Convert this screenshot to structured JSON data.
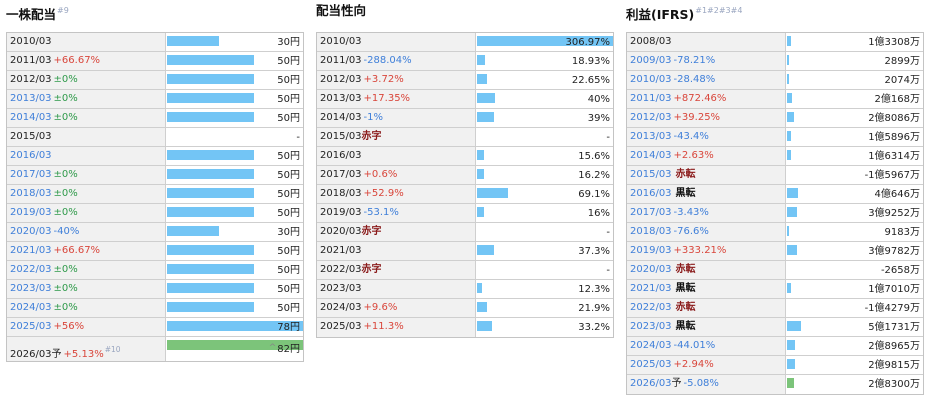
{
  "colors": {
    "bar": "#73c5f5",
    "forecast_bar": "#7cc47a",
    "up": "#d9463b",
    "down": "#3f7fd9",
    "flat": "#2f9a4a",
    "loss": "#8a1a1a"
  },
  "panels": [
    {
      "id": "dividend",
      "title": "一株配当",
      "title_note": "#9",
      "rows": [
        {
          "year": "2010/03",
          "link": false,
          "change": "",
          "tone": "",
          "value": "30円",
          "level": 0.385
        },
        {
          "year": "2011/03",
          "link": false,
          "change": "+66.67%",
          "tone": "pos",
          "value": "50円",
          "level": 0.641
        },
        {
          "year": "2012/03",
          "link": false,
          "change": "±0%",
          "tone": "zero",
          "value": "50円",
          "level": 0.641
        },
        {
          "year": "2013/03",
          "link": true,
          "change": "±0%",
          "tone": "zero",
          "value": "50円",
          "level": 0.641
        },
        {
          "year": "2014/03",
          "link": true,
          "change": "±0%",
          "tone": "zero",
          "value": "50円",
          "level": 0.641
        },
        {
          "year": "2015/03",
          "link": false,
          "change": "",
          "tone": "",
          "value": "-",
          "level": 0
        },
        {
          "year": "2016/03",
          "link": true,
          "change": "",
          "tone": "",
          "value": "50円",
          "level": 0.641
        },
        {
          "year": "2017/03",
          "link": true,
          "change": "±0%",
          "tone": "zero",
          "value": "50円",
          "level": 0.641
        },
        {
          "year": "2018/03",
          "link": true,
          "change": "±0%",
          "tone": "zero",
          "value": "50円",
          "level": 0.641
        },
        {
          "year": "2019/03",
          "link": true,
          "change": "±0%",
          "tone": "zero",
          "value": "50円",
          "level": 0.641
        },
        {
          "year": "2020/03",
          "link": true,
          "change": "-40%",
          "tone": "neg",
          "value": "30円",
          "level": 0.385
        },
        {
          "year": "2021/03",
          "link": true,
          "change": "+66.67%",
          "tone": "pos",
          "value": "50円",
          "level": 0.641
        },
        {
          "year": "2022/03",
          "link": true,
          "change": "±0%",
          "tone": "zero",
          "value": "50円",
          "level": 0.641
        },
        {
          "year": "2023/03",
          "link": true,
          "change": "±0%",
          "tone": "zero",
          "value": "50円",
          "level": 0.641
        },
        {
          "year": "2024/03",
          "link": true,
          "change": "±0%",
          "tone": "zero",
          "value": "50円",
          "level": 0.641
        },
        {
          "year": "2025/03",
          "link": true,
          "change": "+56%",
          "tone": "pos",
          "value": "78円",
          "level": 1.0
        },
        {
          "year": "2026/03",
          "link": false,
          "forecast": true,
          "forecast_label": "予",
          "change": "+5.13%",
          "tone": "pos",
          "change_note": "#10",
          "value_mark": "^",
          "value": "82円",
          "level": 1.0,
          "tall": true
        }
      ]
    },
    {
      "id": "payout",
      "title": "配当性向",
      "title_note": "",
      "rows": [
        {
          "year": "2010/03",
          "link": false,
          "change": "",
          "tone": "",
          "value": "306.97%",
          "level": 1.0
        },
        {
          "year": "2011/03",
          "link": false,
          "change": "-288.04%",
          "tone": "neg",
          "value": "18.93%",
          "level": 0.062
        },
        {
          "year": "2012/03",
          "link": false,
          "change": "+3.72%",
          "tone": "pos",
          "value": "22.65%",
          "level": 0.074
        },
        {
          "year": "2013/03",
          "link": false,
          "change": "+17.35%",
          "tone": "pos",
          "value": "40%",
          "level": 0.13
        },
        {
          "year": "2014/03",
          "link": false,
          "change": "-1%",
          "tone": "neg",
          "value": "39%",
          "level": 0.127
        },
        {
          "year": "2015/03",
          "link": false,
          "change": "赤字",
          "tone": "loss",
          "value": "-",
          "level": 0
        },
        {
          "year": "2016/03",
          "link": false,
          "change": "",
          "tone": "",
          "value": "15.6%",
          "level": 0.051
        },
        {
          "year": "2017/03",
          "link": false,
          "change": "+0.6%",
          "tone": "pos",
          "value": "16.2%",
          "level": 0.053
        },
        {
          "year": "2018/03",
          "link": false,
          "change": "+52.9%",
          "tone": "pos",
          "value": "69.1%",
          "level": 0.225
        },
        {
          "year": "2019/03",
          "link": false,
          "change": "-53.1%",
          "tone": "neg",
          "value": "16%",
          "level": 0.052
        },
        {
          "year": "2020/03",
          "link": false,
          "change": "赤字",
          "tone": "loss",
          "value": "-",
          "level": 0
        },
        {
          "year": "2021/03",
          "link": false,
          "change": "",
          "tone": "",
          "value": "37.3%",
          "level": 0.122
        },
        {
          "year": "2022/03",
          "link": false,
          "change": "赤字",
          "tone": "loss",
          "value": "-",
          "level": 0
        },
        {
          "year": "2023/03",
          "link": false,
          "change": "",
          "tone": "",
          "value": "12.3%",
          "level": 0.04
        },
        {
          "year": "2024/03",
          "link": false,
          "change": "+9.6%",
          "tone": "pos",
          "value": "21.9%",
          "level": 0.071
        },
        {
          "year": "2025/03",
          "link": false,
          "change": "+11.3%",
          "tone": "pos",
          "value": "33.2%",
          "level": 0.108
        }
      ]
    },
    {
      "id": "profit",
      "title": "利益(IFRS)",
      "title_note": "#1#2#3#4",
      "rows": [
        {
          "year": "2008/03",
          "link": false,
          "change": "",
          "tone": "",
          "value": "1億3308万",
          "level": 0.026
        },
        {
          "year": "2009/03",
          "link": true,
          "change": "-78.21%",
          "tone": "neg",
          "value": "2899万",
          "level": 0.006
        },
        {
          "year": "2010/03",
          "link": true,
          "change": "-28.48%",
          "tone": "neg",
          "value": "2074万",
          "level": 0.004
        },
        {
          "year": "2011/03",
          "link": true,
          "change": "+872.46%",
          "tone": "pos",
          "value": "2億168万",
          "level": 0.039
        },
        {
          "year": "2012/03",
          "link": true,
          "change": "+39.25%",
          "tone": "pos",
          "value": "2億8086万",
          "level": 0.055
        },
        {
          "year": "2013/03",
          "link": true,
          "change": "-43.4%",
          "tone": "neg",
          "value": "1億5896万",
          "level": 0.031
        },
        {
          "year": "2014/03",
          "link": true,
          "change": "+2.63%",
          "tone": "pos",
          "value": "1億6314万",
          "level": 0.032
        },
        {
          "year": "2015/03",
          "link": true,
          "change": "赤転",
          "tone": "loss",
          "value": "-1億5967万",
          "level": 0
        },
        {
          "year": "2016/03",
          "link": true,
          "change": "黒転",
          "tone": "black",
          "value": "4億646万",
          "level": 0.079
        },
        {
          "year": "2017/03",
          "link": true,
          "change": "-3.43%",
          "tone": "neg",
          "value": "3億9252万",
          "level": 0.076
        },
        {
          "year": "2018/03",
          "link": true,
          "change": "-76.6%",
          "tone": "neg",
          "value": "9183万",
          "level": 0.018
        },
        {
          "year": "2019/03",
          "link": true,
          "change": "+333.21%",
          "tone": "pos",
          "value": "3億9782万",
          "level": 0.077
        },
        {
          "year": "2020/03",
          "link": true,
          "change": "赤転",
          "tone": "loss",
          "value": "-2658万",
          "level": 0
        },
        {
          "year": "2021/03",
          "link": true,
          "change": "黒転",
          "tone": "black",
          "value": "1億7010万",
          "level": 0.033
        },
        {
          "year": "2022/03",
          "link": true,
          "change": "赤転",
          "tone": "loss",
          "value": "-1億4279万",
          "level": 0
        },
        {
          "year": "2023/03",
          "link": true,
          "change": "黒転",
          "tone": "black",
          "value": "5億1731万",
          "level": 0.1
        },
        {
          "year": "2024/03",
          "link": true,
          "change": "-44.01%",
          "tone": "neg",
          "value": "2億8965万",
          "level": 0.056
        },
        {
          "year": "2025/03",
          "link": true,
          "change": "+2.94%",
          "tone": "pos",
          "value": "2億9815万",
          "level": 0.058
        },
        {
          "year": "2026/03",
          "link": true,
          "forecast": true,
          "forecast_label": "予",
          "change": "-5.08%",
          "tone": "neg",
          "value": "2億8300万",
          "level": 0.055
        }
      ]
    }
  ]
}
